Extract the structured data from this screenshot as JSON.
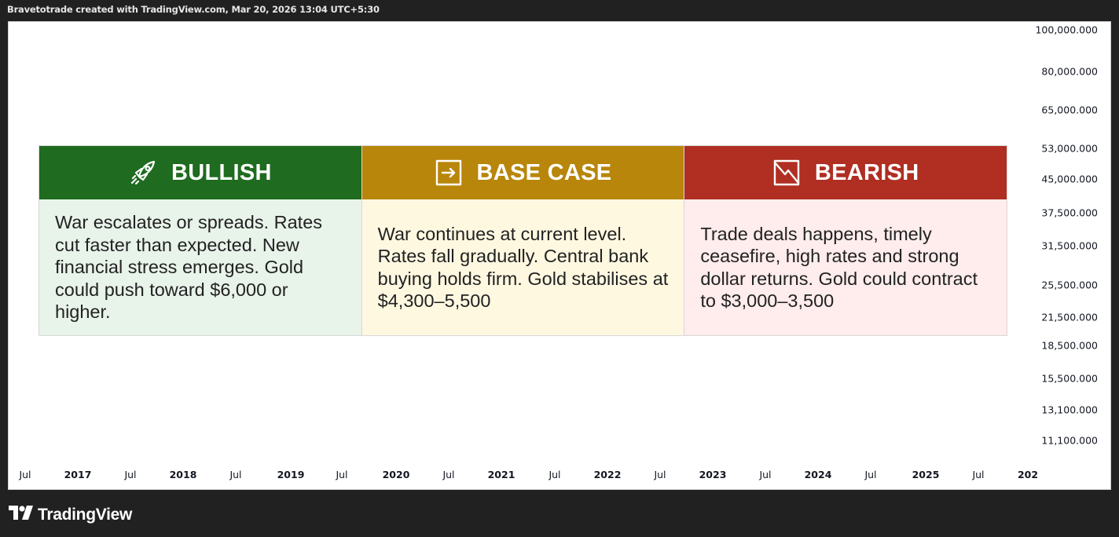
{
  "caption": "Bravetotrade created with TradingView.com, Mar 20, 2026 13:04 UTC+5:30",
  "price_axis": {
    "labels": [
      "100,000.000",
      "80,000.000",
      "65,000.000",
      "53,000.000",
      "45,000.000",
      "37,500.000",
      "31,500.000",
      "25,500.000",
      "21,500.000",
      "18,500.000",
      "15,500.000",
      "13,100.000",
      "11,100.000"
    ]
  },
  "time_axis": {
    "labels": [
      "Jul",
      "2017",
      "Jul",
      "2018",
      "Jul",
      "2019",
      "Jul",
      "2020",
      "Jul",
      "2021",
      "Jul",
      "2022",
      "Jul",
      "2023",
      "Jul",
      "2024",
      "Jul",
      "2025",
      "Jul",
      "202"
    ]
  },
  "scenarios": {
    "bullish": {
      "title": "BULLISH",
      "icon": "rocket-icon",
      "text": "War escalates or spreads. Rates cut faster than expected. New financial stress emerges. Gold could push toward $6,000 or higher.",
      "header_color": "#1f6b1f",
      "body_color": "#e8f3ea"
    },
    "base": {
      "title": "BASE CASE",
      "icon": "arrow-right-box-icon",
      "text": "War continues at current level. Rates fall gradually. Central bank buying holds firm. Gold stabilises at $4,300–5,500",
      "header_color": "#b8860b",
      "body_color": "#fff8e1"
    },
    "bearish": {
      "title": "BEARISH",
      "icon": "trend-down-box-icon",
      "text": "Trade deals happens, timely ceasefire, high rates and strong dollar returns. Gold could contract to $3,000–3,500",
      "header_color": "#b02e22",
      "body_color": "#ffecec"
    }
  },
  "brand": {
    "name": "TradingView",
    "icon": "tradingview-logo-icon"
  }
}
